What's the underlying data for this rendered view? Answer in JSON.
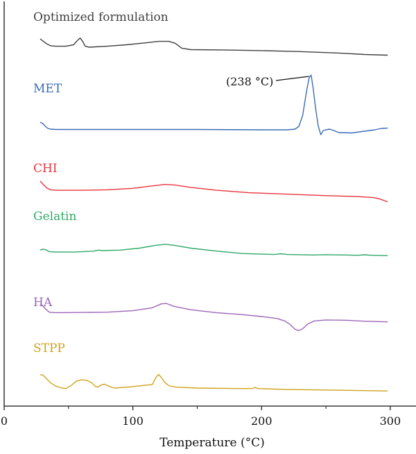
{
  "chart_data": {
    "type": "line",
    "title": "",
    "xlabel": "Temperature (°C)",
    "ylabel": "",
    "xlim": [
      0,
      320
    ],
    "xticks": [
      0,
      100,
      200,
      300
    ],
    "grid": false,
    "legend": "inline labels above each curve",
    "annotation": {
      "text": "(238 °C)",
      "series": "MET",
      "x": 238
    },
    "series": [
      {
        "name": "Optimized formulation",
        "color": "#404040",
        "points": [
          [
            28,
            0.35
          ],
          [
            30,
            0.15
          ],
          [
            33,
            -0.15
          ],
          [
            36,
            -0.35
          ],
          [
            40,
            -0.4
          ],
          [
            48,
            -0.4
          ],
          [
            54,
            -0.25
          ],
          [
            57,
            0.2
          ],
          [
            59,
            0.45
          ],
          [
            61,
            0.1
          ],
          [
            63,
            -0.4
          ],
          [
            66,
            -0.5
          ],
          [
            80,
            -0.4
          ],
          [
            95,
            -0.25
          ],
          [
            110,
            -0.05
          ],
          [
            120,
            0.1
          ],
          [
            128,
            0.1
          ],
          [
            133,
            -0.1
          ],
          [
            138,
            -0.6
          ],
          [
            145,
            -0.75
          ],
          [
            170,
            -0.78
          ],
          [
            200,
            -0.85
          ],
          [
            230,
            -0.95
          ],
          [
            260,
            -1.1
          ],
          [
            280,
            -1.25
          ],
          [
            298,
            -1.32
          ]
        ]
      },
      {
        "name": "MET",
        "color": "#3a6bb5",
        "points": [
          [
            28,
            1.0
          ],
          [
            30,
            0.8
          ],
          [
            32,
            0.4
          ],
          [
            34,
            0.1
          ],
          [
            36,
            0.0
          ],
          [
            40,
            -0.05
          ],
          [
            60,
            -0.05
          ],
          [
            100,
            -0.05
          ],
          [
            150,
            -0.05
          ],
          [
            200,
            -0.1
          ],
          [
            220,
            -0.1
          ],
          [
            226,
            0.0
          ],
          [
            229,
            0.4
          ],
          [
            232,
            2.0
          ],
          [
            235,
            5.5
          ],
          [
            237,
            7.4
          ],
          [
            238.5,
            7.8
          ],
          [
            240,
            6.0
          ],
          [
            242,
            3.0
          ],
          [
            244,
            0.5
          ],
          [
            246,
            -0.8
          ],
          [
            248,
            -0.2
          ],
          [
            250,
            -0.1
          ],
          [
            253,
            0.0
          ],
          [
            256,
            -0.2
          ],
          [
            260,
            -0.5
          ],
          [
            270,
            -0.55
          ],
          [
            280,
            -0.3
          ],
          [
            288,
            -0.1
          ],
          [
            293,
            0.1
          ],
          [
            298,
            0.15
          ]
        ]
      },
      {
        "name": "CHI",
        "color": "#e8323c",
        "points": [
          [
            28,
            0.8
          ],
          [
            30,
            0.5
          ],
          [
            33,
            0.1
          ],
          [
            36,
            -0.1
          ],
          [
            40,
            -0.15
          ],
          [
            60,
            -0.15
          ],
          [
            80,
            -0.1
          ],
          [
            100,
            0.05
          ],
          [
            115,
            0.3
          ],
          [
            125,
            0.45
          ],
          [
            132,
            0.4
          ],
          [
            145,
            0.15
          ],
          [
            165,
            -0.15
          ],
          [
            190,
            -0.4
          ],
          [
            220,
            -0.55
          ],
          [
            250,
            -0.7
          ],
          [
            275,
            -0.8
          ],
          [
            287,
            -0.9
          ],
          [
            292,
            -1.05
          ],
          [
            296,
            -1.25
          ],
          [
            298,
            -1.35
          ]
        ]
      },
      {
        "name": "Gelatin",
        "color": "#2fa867",
        "points": [
          [
            28,
            0.05
          ],
          [
            30,
            0.15
          ],
          [
            32,
            0.1
          ],
          [
            35,
            -0.1
          ],
          [
            40,
            -0.15
          ],
          [
            55,
            -0.15
          ],
          [
            70,
            -0.05
          ],
          [
            73,
            0.05
          ],
          [
            76,
            0.0
          ],
          [
            90,
            0.05
          ],
          [
            105,
            0.25
          ],
          [
            118,
            0.55
          ],
          [
            125,
            0.65
          ],
          [
            132,
            0.55
          ],
          [
            145,
            0.25
          ],
          [
            165,
            -0.05
          ],
          [
            185,
            -0.3
          ],
          [
            210,
            -0.4
          ],
          [
            215,
            -0.32
          ],
          [
            220,
            -0.4
          ],
          [
            240,
            -0.45
          ],
          [
            250,
            -0.42
          ],
          [
            265,
            -0.45
          ],
          [
            275,
            -0.48
          ],
          [
            280,
            -0.43
          ],
          [
            285,
            -0.48
          ],
          [
            298,
            -0.52
          ]
        ]
      },
      {
        "name": "HA",
        "color": "#9b65b8",
        "points": [
          [
            28,
            0.8
          ],
          [
            30,
            0.6
          ],
          [
            32,
            0.3
          ],
          [
            35,
            -0.05
          ],
          [
            40,
            -0.1
          ],
          [
            60,
            -0.08
          ],
          [
            80,
            -0.05
          ],
          [
            100,
            0.1
          ],
          [
            115,
            0.4
          ],
          [
            122,
            0.8
          ],
          [
            126,
            0.85
          ],
          [
            132,
            0.55
          ],
          [
            145,
            0.2
          ],
          [
            165,
            -0.1
          ],
          [
            185,
            -0.3
          ],
          [
            200,
            -0.5
          ],
          [
            212,
            -0.7
          ],
          [
            218,
            -0.95
          ],
          [
            222,
            -1.3
          ],
          [
            226,
            -1.8
          ],
          [
            229,
            -1.95
          ],
          [
            232,
            -1.75
          ],
          [
            236,
            -1.25
          ],
          [
            241,
            -0.95
          ],
          [
            250,
            -0.85
          ],
          [
            265,
            -0.88
          ],
          [
            280,
            -0.98
          ],
          [
            298,
            -1.05
          ]
        ]
      },
      {
        "name": "STPP",
        "color": "#cfa21a",
        "points": [
          [
            28,
            0.85
          ],
          [
            30,
            0.85
          ],
          [
            33,
            0.45
          ],
          [
            36,
            0.05
          ],
          [
            40,
            -0.3
          ],
          [
            45,
            -0.5
          ],
          [
            48,
            -0.55
          ],
          [
            52,
            -0.25
          ],
          [
            56,
            0.2
          ],
          [
            60,
            0.35
          ],
          [
            64,
            0.3
          ],
          [
            68,
            0.05
          ],
          [
            71,
            -0.35
          ],
          [
            73,
            -0.4
          ],
          [
            75,
            -0.2
          ],
          [
            78,
            -0.1
          ],
          [
            82,
            -0.35
          ],
          [
            86,
            -0.5
          ],
          [
            100,
            -0.35
          ],
          [
            110,
            -0.2
          ],
          [
            115,
            -0.15
          ],
          [
            118,
            0.6
          ],
          [
            120,
            0.9
          ],
          [
            122,
            0.6
          ],
          [
            125,
            0.05
          ],
          [
            128,
            -0.25
          ],
          [
            133,
            -0.4
          ],
          [
            150,
            -0.5
          ],
          [
            180,
            -0.55
          ],
          [
            193,
            -0.55
          ],
          [
            195,
            -0.42
          ],
          [
            197,
            -0.55
          ],
          [
            220,
            -0.65
          ],
          [
            260,
            -0.72
          ],
          [
            298,
            -0.8
          ]
        ]
      }
    ]
  }
}
